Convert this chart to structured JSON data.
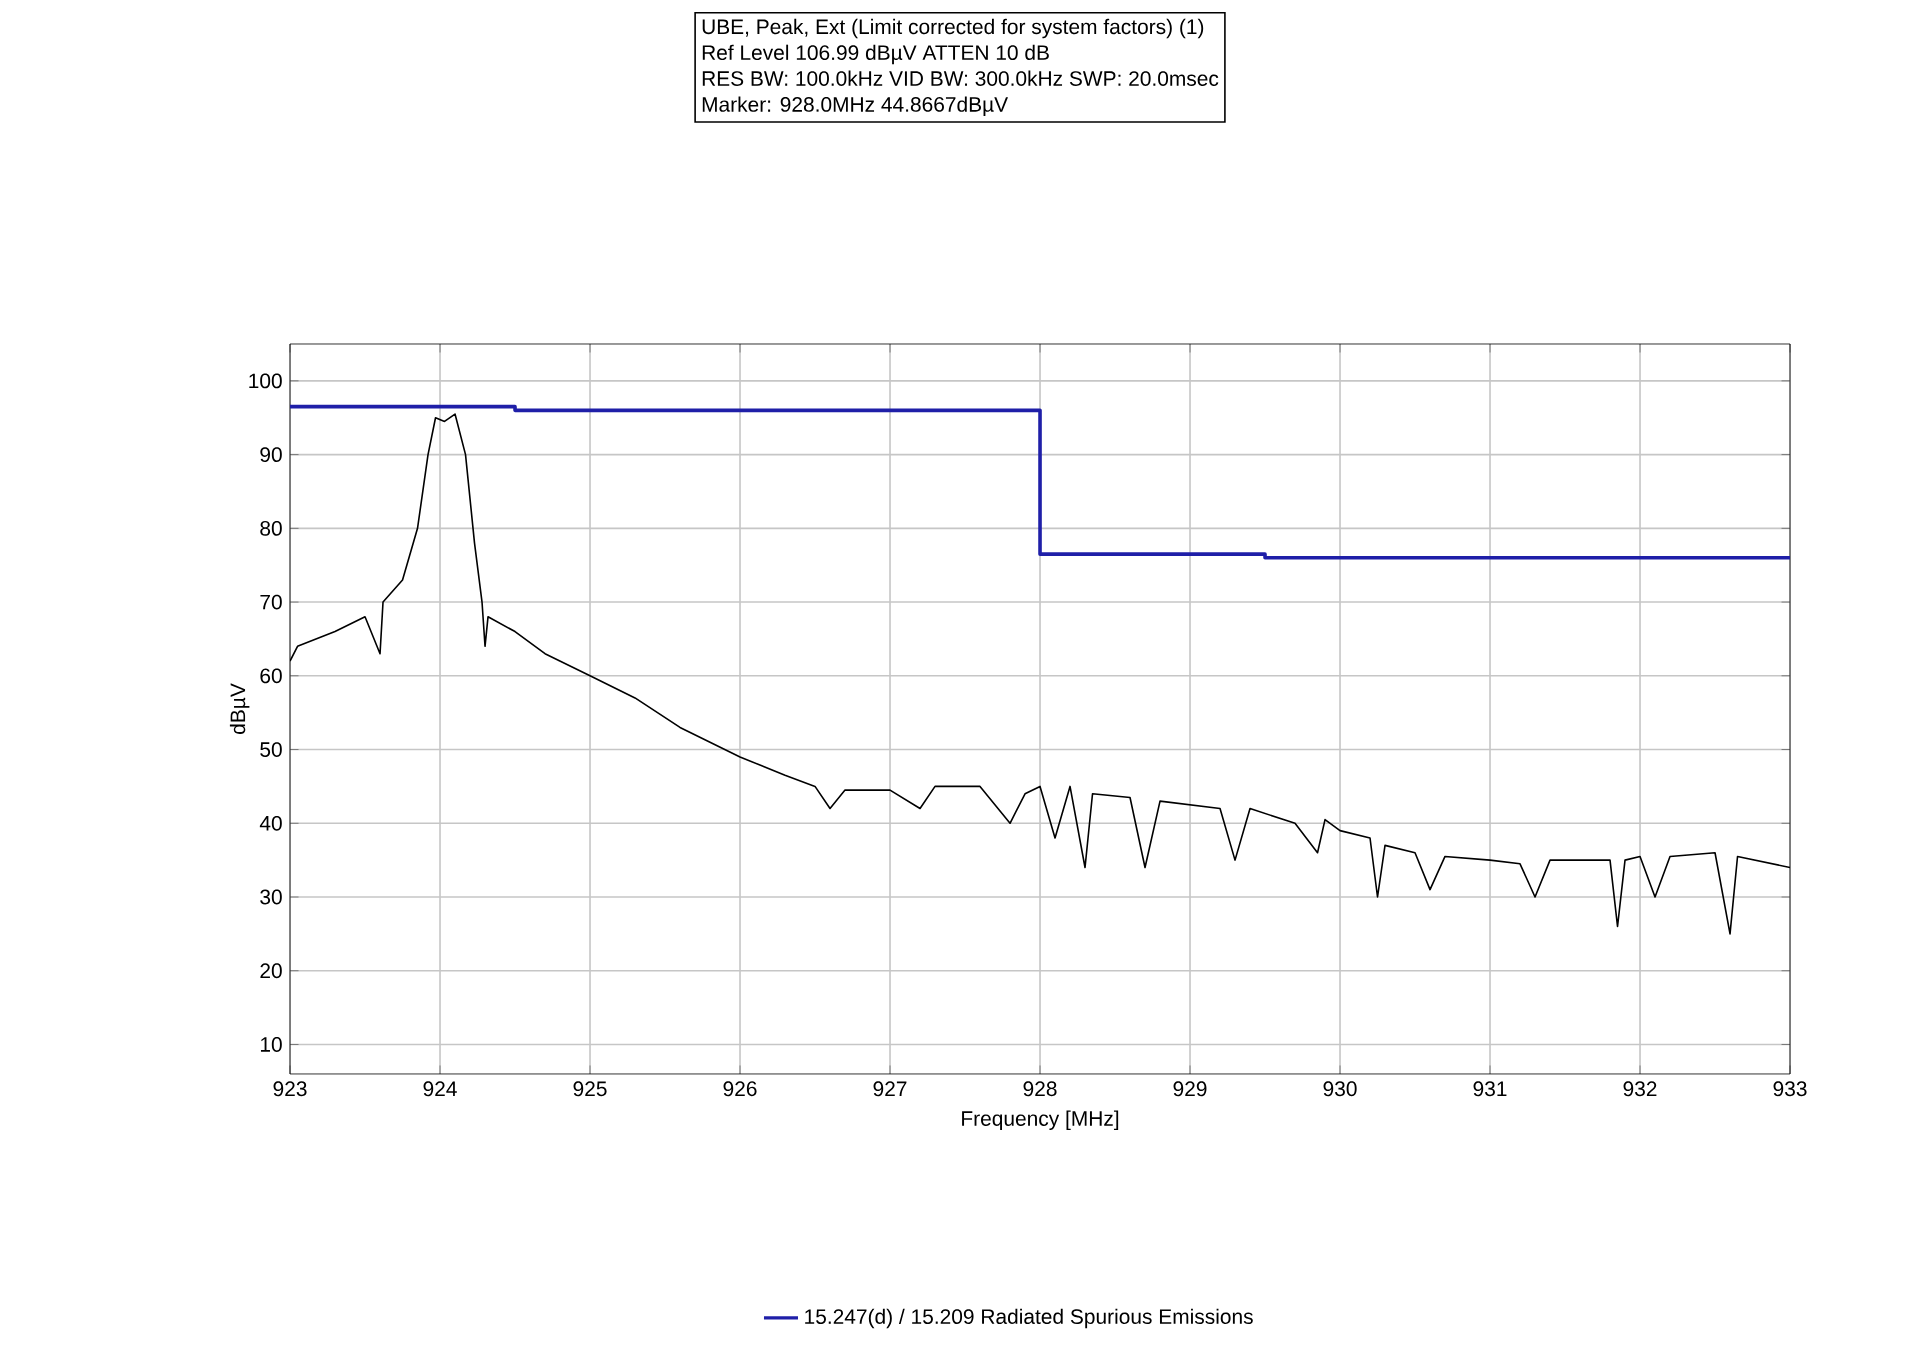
{
  "chart_data": {
    "type": "line",
    "title": "UBE, Peak, Ext (Limit corrected for system factors) (1)",
    "annotations": [
      "Ref Level 106.99 dBµV    ATTEN 10 dB",
      "RES BW: 100.0kHz  VID BW: 300.0kHz  SWP: 20.0msec",
      "Marker: 928.0MHz  44.8667dBµV"
    ],
    "xlabel": "Frequency [MHz]",
    "ylabel": "dBµV",
    "xlim": [
      923,
      933
    ],
    "ylim": [
      6,
      105
    ],
    "xticks": [
      923,
      924,
      925,
      926,
      927,
      928,
      929,
      930,
      931,
      932,
      933
    ],
    "yticks": [
      10,
      20,
      30,
      40,
      50,
      60,
      70,
      80,
      90,
      100
    ],
    "grid": true,
    "legend": "bottom",
    "marker": "none",
    "line_style": "solid",
    "series": [
      {
        "color": "#000000",
        "x": [
          923.0,
          923.05,
          923.3,
          923.5,
          923.6,
          923.62,
          923.75,
          923.85,
          923.92,
          923.97,
          924.03,
          924.1,
          924.17,
          924.23,
          924.28,
          924.3,
          924.32,
          924.5,
          924.7,
          925.0,
          925.3,
          925.6,
          926.0,
          926.3,
          926.5,
          926.6,
          926.7,
          927.0,
          927.2,
          927.3,
          927.6,
          927.8,
          927.9,
          928.0,
          928.1,
          928.2,
          928.3,
          928.35,
          928.6,
          928.7,
          928.8,
          929.2,
          929.3,
          929.4,
          929.7,
          929.85,
          929.9,
          930.0,
          930.2,
          930.25,
          930.3,
          930.5,
          930.6,
          930.7,
          931.0,
          931.2,
          931.3,
          931.4,
          931.8,
          931.85,
          931.9,
          932.0,
          932.1,
          932.2,
          932.5,
          932.6,
          932.65,
          933.0
        ],
        "values": [
          62,
          64,
          66,
          68,
          63,
          70,
          73,
          80,
          90,
          95,
          94.5,
          95.5,
          90,
          78,
          70,
          64,
          68,
          66,
          63,
          60,
          57,
          53,
          49,
          46.5,
          45,
          42,
          44.5,
          44.5,
          42,
          45,
          45,
          40,
          44,
          45,
          38,
          45,
          34,
          44,
          43.5,
          34,
          43,
          42,
          35,
          42,
          40,
          36,
          40.5,
          39,
          38,
          30,
          37,
          36,
          31,
          35.5,
          35,
          34.5,
          30,
          35,
          35,
          26,
          35,
          35.5,
          30,
          35.5,
          36,
          25,
          35.5,
          34
        ]
      },
      {
        "name": "15.247(d) / 15.209 Radiated Spurious Emissions",
        "color": "#1f1fa8",
        "type": "step",
        "x": [
          923,
          924.5,
          928,
          929.5,
          933
        ],
        "values": [
          96.5,
          96,
          76.5,
          76,
          76
        ]
      }
    ]
  }
}
